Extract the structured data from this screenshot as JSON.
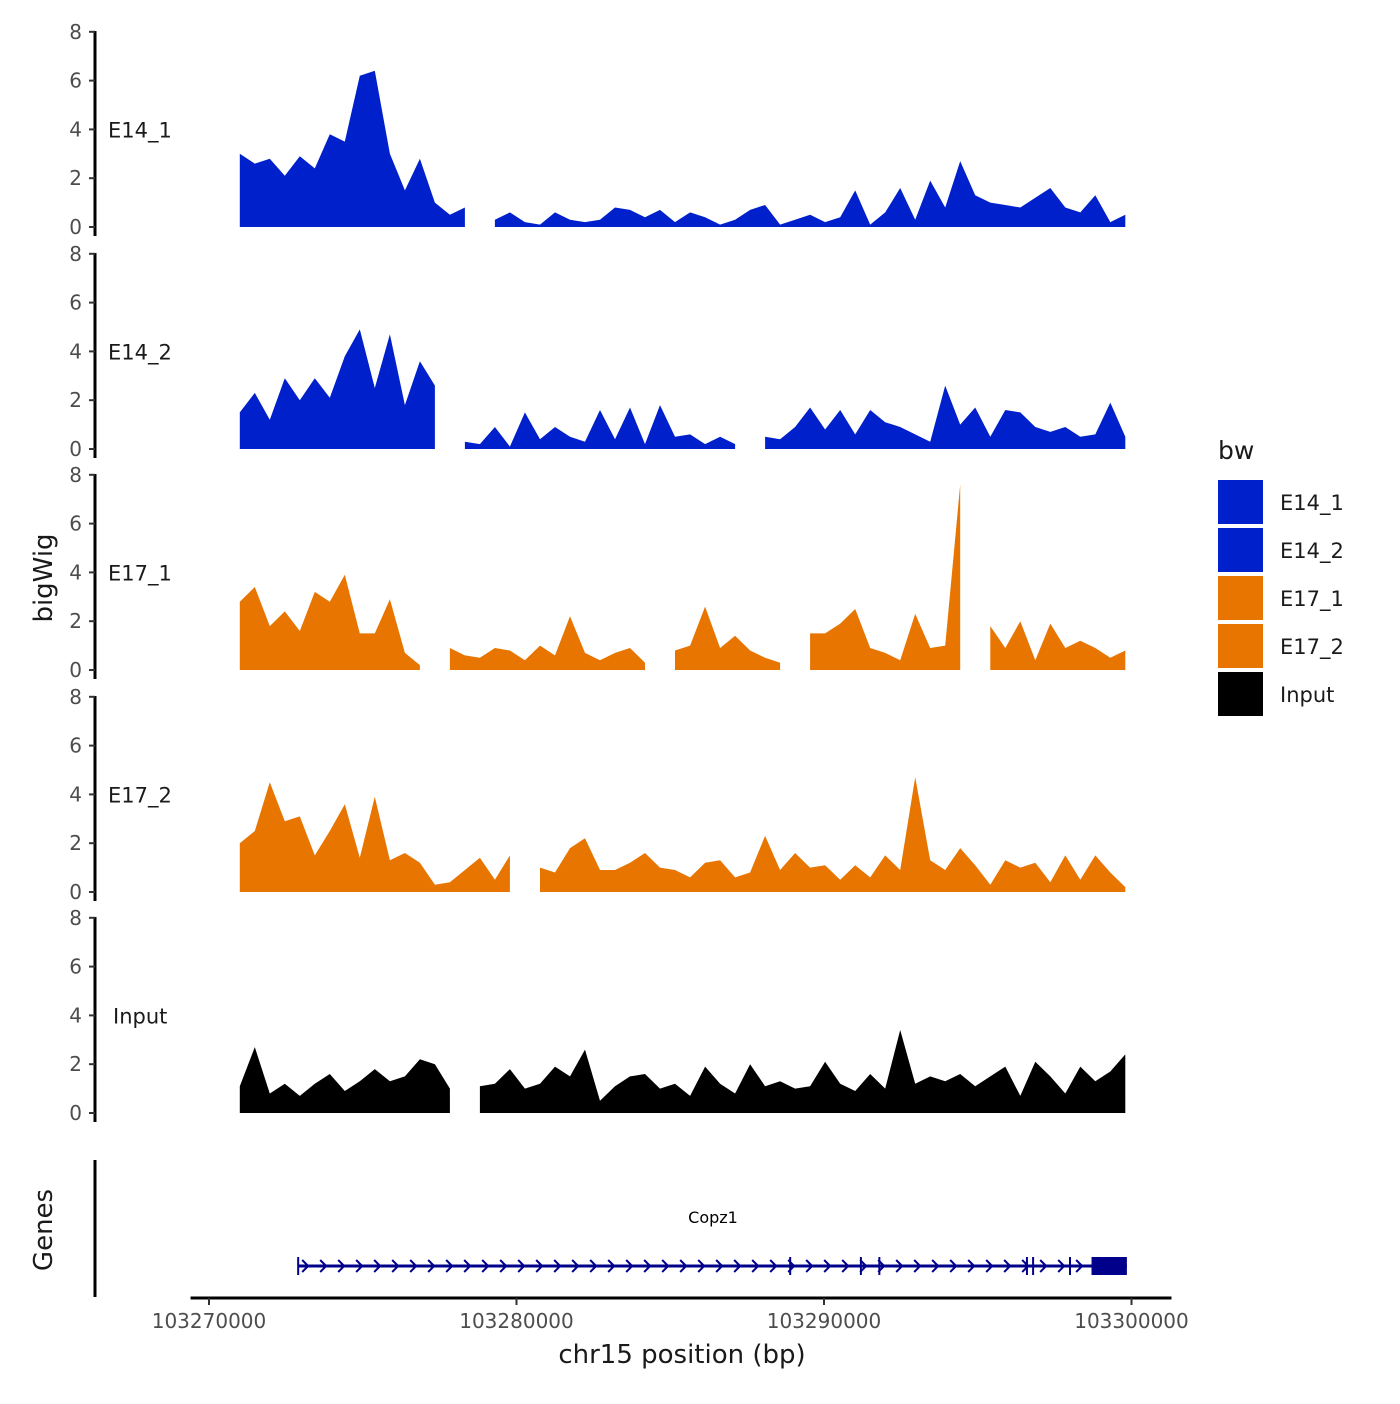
{
  "chart_data": {
    "type": "area",
    "ylabel": "bigWig",
    "xlabel": "chr15 position (bp)",
    "genes_label": "Genes",
    "ylim": [
      0,
      8
    ],
    "yticks": [
      "0",
      "2",
      "4",
      "6",
      "8"
    ],
    "xlim": [
      103269400,
      103301300
    ],
    "xticks": [
      103270000,
      103280000,
      103290000,
      103300000
    ],
    "xtick_labels": [
      "103270000",
      "103280000",
      "103290000",
      "103300000"
    ],
    "data_range": [
      103271000,
      103299800
    ],
    "legend": {
      "title": "bw",
      "position": "right",
      "entries": [
        {
          "label": "E14_1",
          "color": "#0020CC"
        },
        {
          "label": "E14_2",
          "color": "#0020CC"
        },
        {
          "label": "E17_1",
          "color": "#E87500"
        },
        {
          "label": "E17_2",
          "color": "#E87500"
        },
        {
          "label": "Input",
          "color": "#000000"
        }
      ]
    },
    "series": [
      {
        "name": "E14_1",
        "color": "#0020CC",
        "values": [
          3.0,
          2.6,
          2.8,
          2.1,
          2.9,
          2.4,
          3.8,
          3.5,
          6.2,
          6.4,
          3.0,
          1.5,
          2.8,
          1.0,
          0.5,
          0.8,
          null,
          0.3,
          0.6,
          0.2,
          0.1,
          0.6,
          0.3,
          0.2,
          0.3,
          0.8,
          0.7,
          0.4,
          0.7,
          0.2,
          0.6,
          0.4,
          0.1,
          0.3,
          0.7,
          0.9,
          0.1,
          0.3,
          0.5,
          0.2,
          0.4,
          1.5,
          0.1,
          0.6,
          1.6,
          0.3,
          1.9,
          0.8,
          2.7,
          1.3,
          1.0,
          0.9,
          0.8,
          1.2,
          1.6,
          0.8,
          0.6,
          1.3,
          0.2,
          0.5
        ]
      },
      {
        "name": "E14_2",
        "color": "#0020CC",
        "values": [
          1.5,
          2.3,
          1.2,
          2.9,
          2.0,
          2.9,
          2.1,
          3.8,
          4.9,
          2.5,
          4.7,
          1.8,
          3.6,
          2.6,
          null,
          0.3,
          0.2,
          0.9,
          0.1,
          1.5,
          0.4,
          0.9,
          0.5,
          0.3,
          1.6,
          0.4,
          1.7,
          0.2,
          1.8,
          0.5,
          0.6,
          0.2,
          0.5,
          0.2,
          null,
          0.5,
          0.4,
          0.9,
          1.7,
          0.8,
          1.6,
          0.6,
          1.6,
          1.1,
          0.9,
          0.6,
          0.3,
          2.6,
          1.0,
          1.7,
          0.5,
          1.6,
          1.5,
          0.9,
          0.7,
          0.9,
          0.5,
          0.6,
          1.9,
          0.5
        ]
      },
      {
        "name": "E17_1",
        "color": "#E87500",
        "values": [
          2.8,
          3.4,
          1.8,
          2.4,
          1.6,
          3.2,
          2.8,
          3.9,
          1.5,
          1.5,
          2.9,
          0.7,
          0.2,
          null,
          0.9,
          0.6,
          0.5,
          0.9,
          0.8,
          0.4,
          1.0,
          0.6,
          2.2,
          0.7,
          0.4,
          0.7,
          0.9,
          0.3,
          null,
          0.8,
          1.0,
          2.6,
          0.9,
          1.4,
          0.8,
          0.5,
          0.3,
          null,
          1.5,
          1.5,
          1.9,
          2.5,
          0.9,
          0.7,
          0.4,
          2.3,
          0.9,
          1.0,
          7.6,
          null,
          1.8,
          0.9,
          2.0,
          0.4,
          1.9,
          0.9,
          1.2,
          0.9,
          0.5,
          0.8
        ]
      },
      {
        "name": "E17_2",
        "color": "#E87500",
        "values": [
          2.0,
          2.5,
          4.5,
          2.9,
          3.1,
          1.5,
          2.5,
          3.6,
          1.4,
          3.9,
          1.3,
          1.6,
          1.2,
          0.3,
          0.4,
          0.9,
          1.4,
          0.5,
          1.5,
          null,
          1.0,
          0.8,
          1.8,
          2.2,
          0.9,
          0.9,
          1.2,
          1.6,
          1.0,
          0.9,
          0.6,
          1.2,
          1.3,
          0.6,
          0.8,
          2.3,
          0.9,
          1.6,
          1.0,
          1.1,
          0.5,
          1.1,
          0.6,
          1.5,
          0.9,
          4.7,
          1.3,
          0.9,
          1.8,
          1.1,
          0.3,
          1.3,
          1.0,
          1.2,
          0.4,
          1.5,
          0.5,
          1.5,
          0.8,
          0.2
        ]
      },
      {
        "name": "Input",
        "color": "#000000",
        "values": [
          1.1,
          2.7,
          0.8,
          1.2,
          0.7,
          1.2,
          1.6,
          0.9,
          1.3,
          1.8,
          1.3,
          1.5,
          2.2,
          2.0,
          1.0,
          null,
          1.1,
          1.2,
          1.8,
          1.0,
          1.2,
          1.9,
          1.5,
          2.6,
          0.5,
          1.1,
          1.5,
          1.6,
          1.0,
          1.2,
          0.7,
          1.9,
          1.2,
          0.8,
          2.0,
          1.1,
          1.3,
          1.0,
          1.1,
          2.1,
          1.2,
          0.9,
          1.6,
          1.0,
          3.4,
          1.2,
          1.5,
          1.3,
          1.6,
          1.1,
          1.5,
          1.9,
          0.7,
          2.1,
          1.5,
          0.8,
          1.9,
          1.3,
          1.7,
          2.4
        ]
      }
    ],
    "gene": {
      "name": "Copz1",
      "start": 103272900,
      "end": 103299850,
      "strand": "+",
      "color": "#00008B",
      "exon_marks": [
        103272900,
        103288900,
        103291200,
        103291800,
        103296600,
        103296800,
        103298000
      ],
      "utr_block": [
        103298700,
        103299850
      ]
    }
  }
}
